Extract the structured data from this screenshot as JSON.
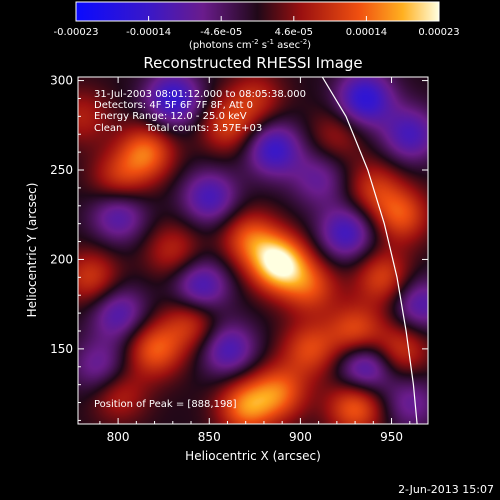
{
  "chart_data": {
    "type": "heatmap",
    "title": "Reconstructed RHESSI Image",
    "xlabel": "Heliocentric X (arcsec)",
    "ylabel": "Heliocentric Y (arcsec)",
    "xlim": [
      778,
      970
    ],
    "ylim": [
      108,
      302
    ],
    "xticks": [
      800,
      850,
      900,
      950
    ],
    "yticks": [
      150,
      200,
      250,
      300
    ],
    "colorbar": {
      "ticks": [
        "-0.00023",
        "-0.00014",
        "-4.6e-05",
        "4.6e-05",
        "0.00014",
        "0.00023"
      ],
      "range": [
        -0.00023,
        0.00023
      ],
      "unit_label": "(photons cm",
      "unit_sup1": "-2",
      "unit_mid": " s",
      "unit_sup2": "-1",
      "unit_mid2": " asec",
      "unit_sup3": "-2",
      "unit_end": ")"
    },
    "annotations": {
      "line1": "31-Jul-2003 08:01:12.000 to 08:05:38.000",
      "line2": "Detectors: 4F 5F 6F 7F 8F, Att 0",
      "line3": "Energy Range: 12.0 - 25.0 keV",
      "line4_a": "Clean",
      "line4_b": "Total counts: 3.57E+03",
      "peak": "Position of Peak = [888,198]"
    },
    "peak": {
      "x": 888,
      "y": 198
    },
    "limb": [
      [
        912,
        302
      ],
      [
        925,
        280
      ],
      [
        937,
        250
      ],
      [
        946,
        220
      ],
      [
        953,
        190
      ],
      [
        958,
        160
      ],
      [
        962,
        130
      ],
      [
        964,
        108
      ]
    ],
    "blobs": [
      {
        "x": 888,
        "y": 198,
        "w": 0.00023
      },
      {
        "x": 872,
        "y": 212,
        "w": 0.00012
      },
      {
        "x": 905,
        "y": 185,
        "w": 0.00011
      },
      {
        "x": 815,
        "y": 260,
        "w": 0.00014
      },
      {
        "x": 800,
        "y": 245,
        "w": 9e-05
      },
      {
        "x": 860,
        "y": 275,
        "w": 0.0001
      },
      {
        "x": 875,
        "y": 290,
        "w": 8e-05
      },
      {
        "x": 945,
        "y": 190,
        "w": 0.00011
      },
      {
        "x": 955,
        "y": 225,
        "w": 0.00012
      },
      {
        "x": 930,
        "y": 160,
        "w": 0.00012
      },
      {
        "x": 905,
        "y": 150,
        "w": 0.00011
      },
      {
        "x": 820,
        "y": 150,
        "w": 0.00013
      },
      {
        "x": 840,
        "y": 165,
        "w": 0.0001
      },
      {
        "x": 785,
        "y": 190,
        "w": 0.0001
      },
      {
        "x": 830,
        "y": 205,
        "w": 8e-05
      },
      {
        "x": 870,
        "y": 118,
        "w": 0.00015
      },
      {
        "x": 888,
        "y": 126,
        "w": 0.00013
      },
      {
        "x": 930,
        "y": 118,
        "w": 0.00014
      },
      {
        "x": 955,
        "y": 150,
        "w": 0.0001
      },
      {
        "x": 940,
        "y": 240,
        "w": 9e-05
      },
      {
        "x": 920,
        "y": 270,
        "w": 6e-05
      },
      {
        "x": 800,
        "y": 125,
        "w": 8e-05
      },
      {
        "x": 780,
        "y": 280,
        "w": 7e-05
      },
      {
        "x": 850,
        "y": 235,
        "w": -0.00012
      },
      {
        "x": 830,
        "y": 290,
        "w": -0.00015
      },
      {
        "x": 885,
        "y": 262,
        "w": -0.00014
      },
      {
        "x": 935,
        "y": 290,
        "w": -0.00016
      },
      {
        "x": 960,
        "y": 270,
        "w": -0.00012
      },
      {
        "x": 800,
        "y": 225,
        "w": -0.00011
      },
      {
        "x": 845,
        "y": 185,
        "w": -0.00013
      },
      {
        "x": 860,
        "y": 150,
        "w": -0.00012
      },
      {
        "x": 935,
        "y": 140,
        "w": -0.00014
      },
      {
        "x": 925,
        "y": 215,
        "w": -0.00013
      },
      {
        "x": 800,
        "y": 170,
        "w": -0.00011
      },
      {
        "x": 965,
        "y": 175,
        "w": -0.00011
      },
      {
        "x": 790,
        "y": 140,
        "w": -9e-05
      },
      {
        "x": 910,
        "y": 245,
        "w": -8e-05
      },
      {
        "x": 960,
        "y": 120,
        "w": -8e-05
      }
    ]
  },
  "footer": {
    "date": "2-Jun-2013 15:07"
  }
}
